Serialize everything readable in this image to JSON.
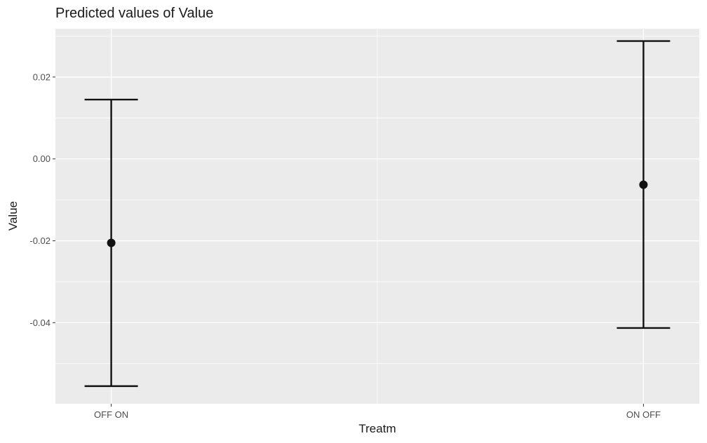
{
  "chart_data": {
    "type": "errorbar",
    "title": "Predicted values of Value",
    "xlabel": "Treatm",
    "ylabel": "Value",
    "categories": [
      "OFF ON",
      "ON OFF"
    ],
    "estimates": [
      -0.0205,
      -0.0063
    ],
    "lower": [
      -0.0555,
      -0.0413
    ],
    "upper": [
      0.0145,
      0.0288
    ],
    "ylim": [
      -0.0598,
      0.0318
    ],
    "yticks": [
      -0.04,
      -0.02,
      0.0,
      0.02
    ],
    "ytick_labels": [
      "-0.04",
      "-0.02",
      "0.00",
      "0.02"
    ],
    "grid": true,
    "colors": {
      "panel": "#ebebeb",
      "grid": "#ffffff",
      "mark": "#111111",
      "tick": "#4d4d4d"
    }
  }
}
